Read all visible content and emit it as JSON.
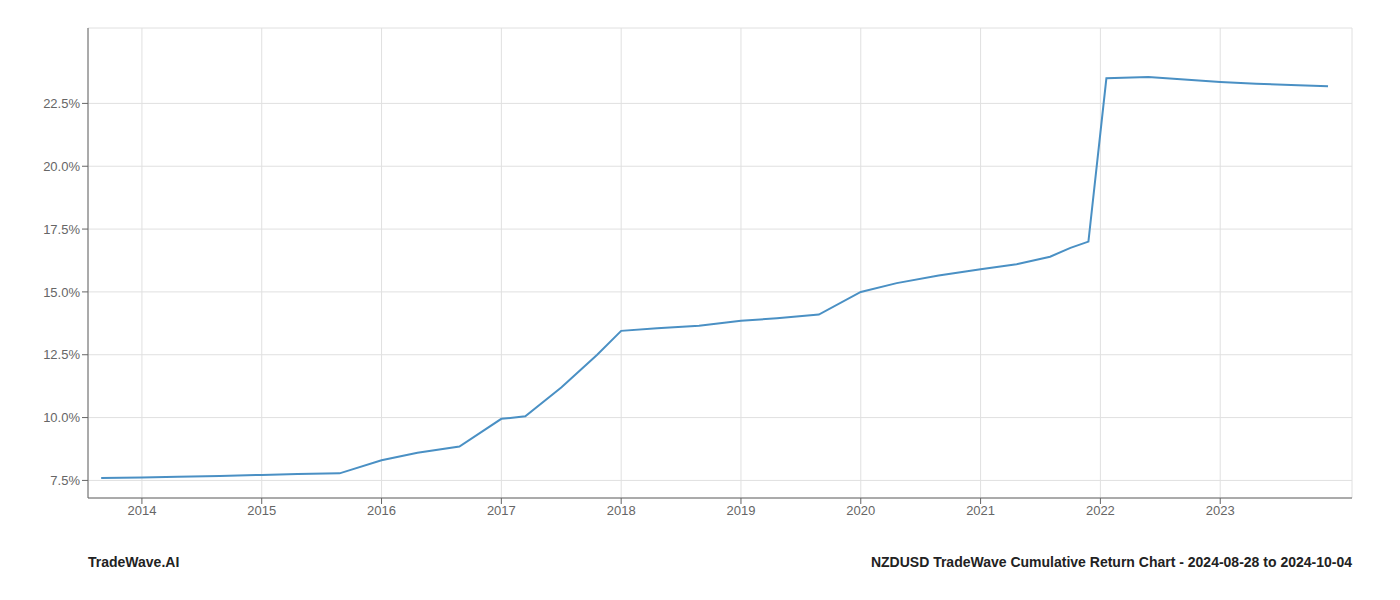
{
  "chart_data": {
    "type": "line",
    "x": [
      2013.66,
      2014.0,
      2014.3,
      2014.65,
      2015.0,
      2015.3,
      2015.65,
      2016.0,
      2016.3,
      2016.65,
      2017.0,
      2017.2,
      2017.5,
      2017.8,
      2018.0,
      2018.3,
      2018.65,
      2019.0,
      2019.3,
      2019.65,
      2020.0,
      2020.3,
      2020.65,
      2021.0,
      2021.3,
      2021.58,
      2021.75,
      2021.9,
      2022.05,
      2022.4,
      2022.7,
      2023.0,
      2023.3,
      2023.65,
      2023.9
    ],
    "values": [
      7.6,
      7.62,
      7.65,
      7.68,
      7.72,
      7.75,
      7.78,
      8.3,
      8.6,
      8.85,
      9.95,
      10.05,
      11.2,
      12.5,
      13.45,
      13.55,
      13.65,
      13.85,
      13.95,
      14.1,
      15.0,
      15.35,
      15.65,
      15.9,
      16.1,
      16.4,
      16.75,
      17.0,
      23.5,
      23.55,
      23.45,
      23.35,
      23.28,
      23.22,
      23.18
    ],
    "color": "#4a90c4",
    "xlim": [
      2013.55,
      2024.1
    ],
    "ylim": [
      6.8,
      25.5
    ],
    "xticks": [
      2014,
      2015,
      2016,
      2017,
      2018,
      2019,
      2020,
      2021,
      2022,
      2023
    ],
    "yticks": [
      {
        "value": 7.5,
        "label": "7.5%"
      },
      {
        "value": 10.0,
        "label": "10.0%"
      },
      {
        "value": 12.5,
        "label": "12.5%"
      },
      {
        "value": 15.0,
        "label": "15.0%"
      },
      {
        "value": 17.5,
        "label": "17.5%"
      },
      {
        "value": 20.0,
        "label": "20.0%"
      },
      {
        "value": 22.5,
        "label": "22.5%"
      }
    ],
    "grid": true,
    "annotations": [
      "TradeWave.AI",
      "NZDUSD TradeWave Cumulative Return Chart - 2024-08-28 to 2024-10-04"
    ]
  }
}
